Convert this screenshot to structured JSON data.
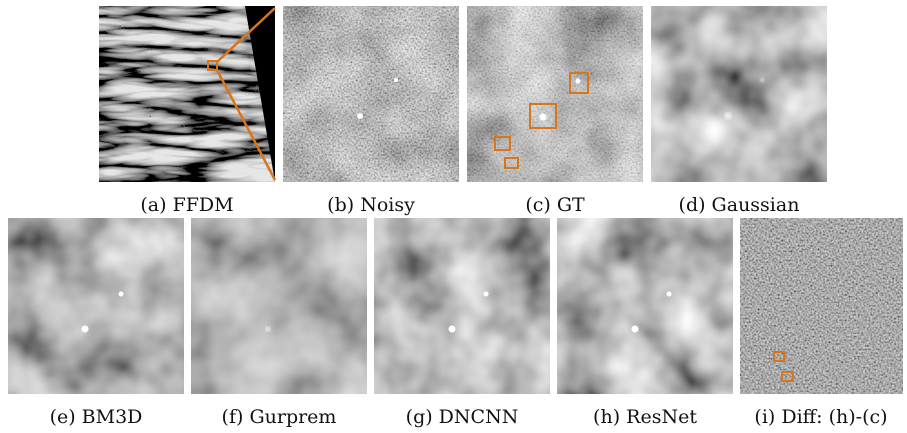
{
  "panels": [
    {
      "caption": "(a) FFDM"
    },
    {
      "caption": "(b) Noisy"
    },
    {
      "caption": "(c) GT"
    },
    {
      "caption": "(d) Gaussian"
    },
    {
      "caption": "(e) BM3D"
    },
    {
      "caption": "(f) Gurprem"
    },
    {
      "caption": "(g) DNCNN"
    },
    {
      "caption": "(h) ResNet"
    },
    {
      "caption": "(i) Diff: (h)-(c)"
    }
  ]
}
